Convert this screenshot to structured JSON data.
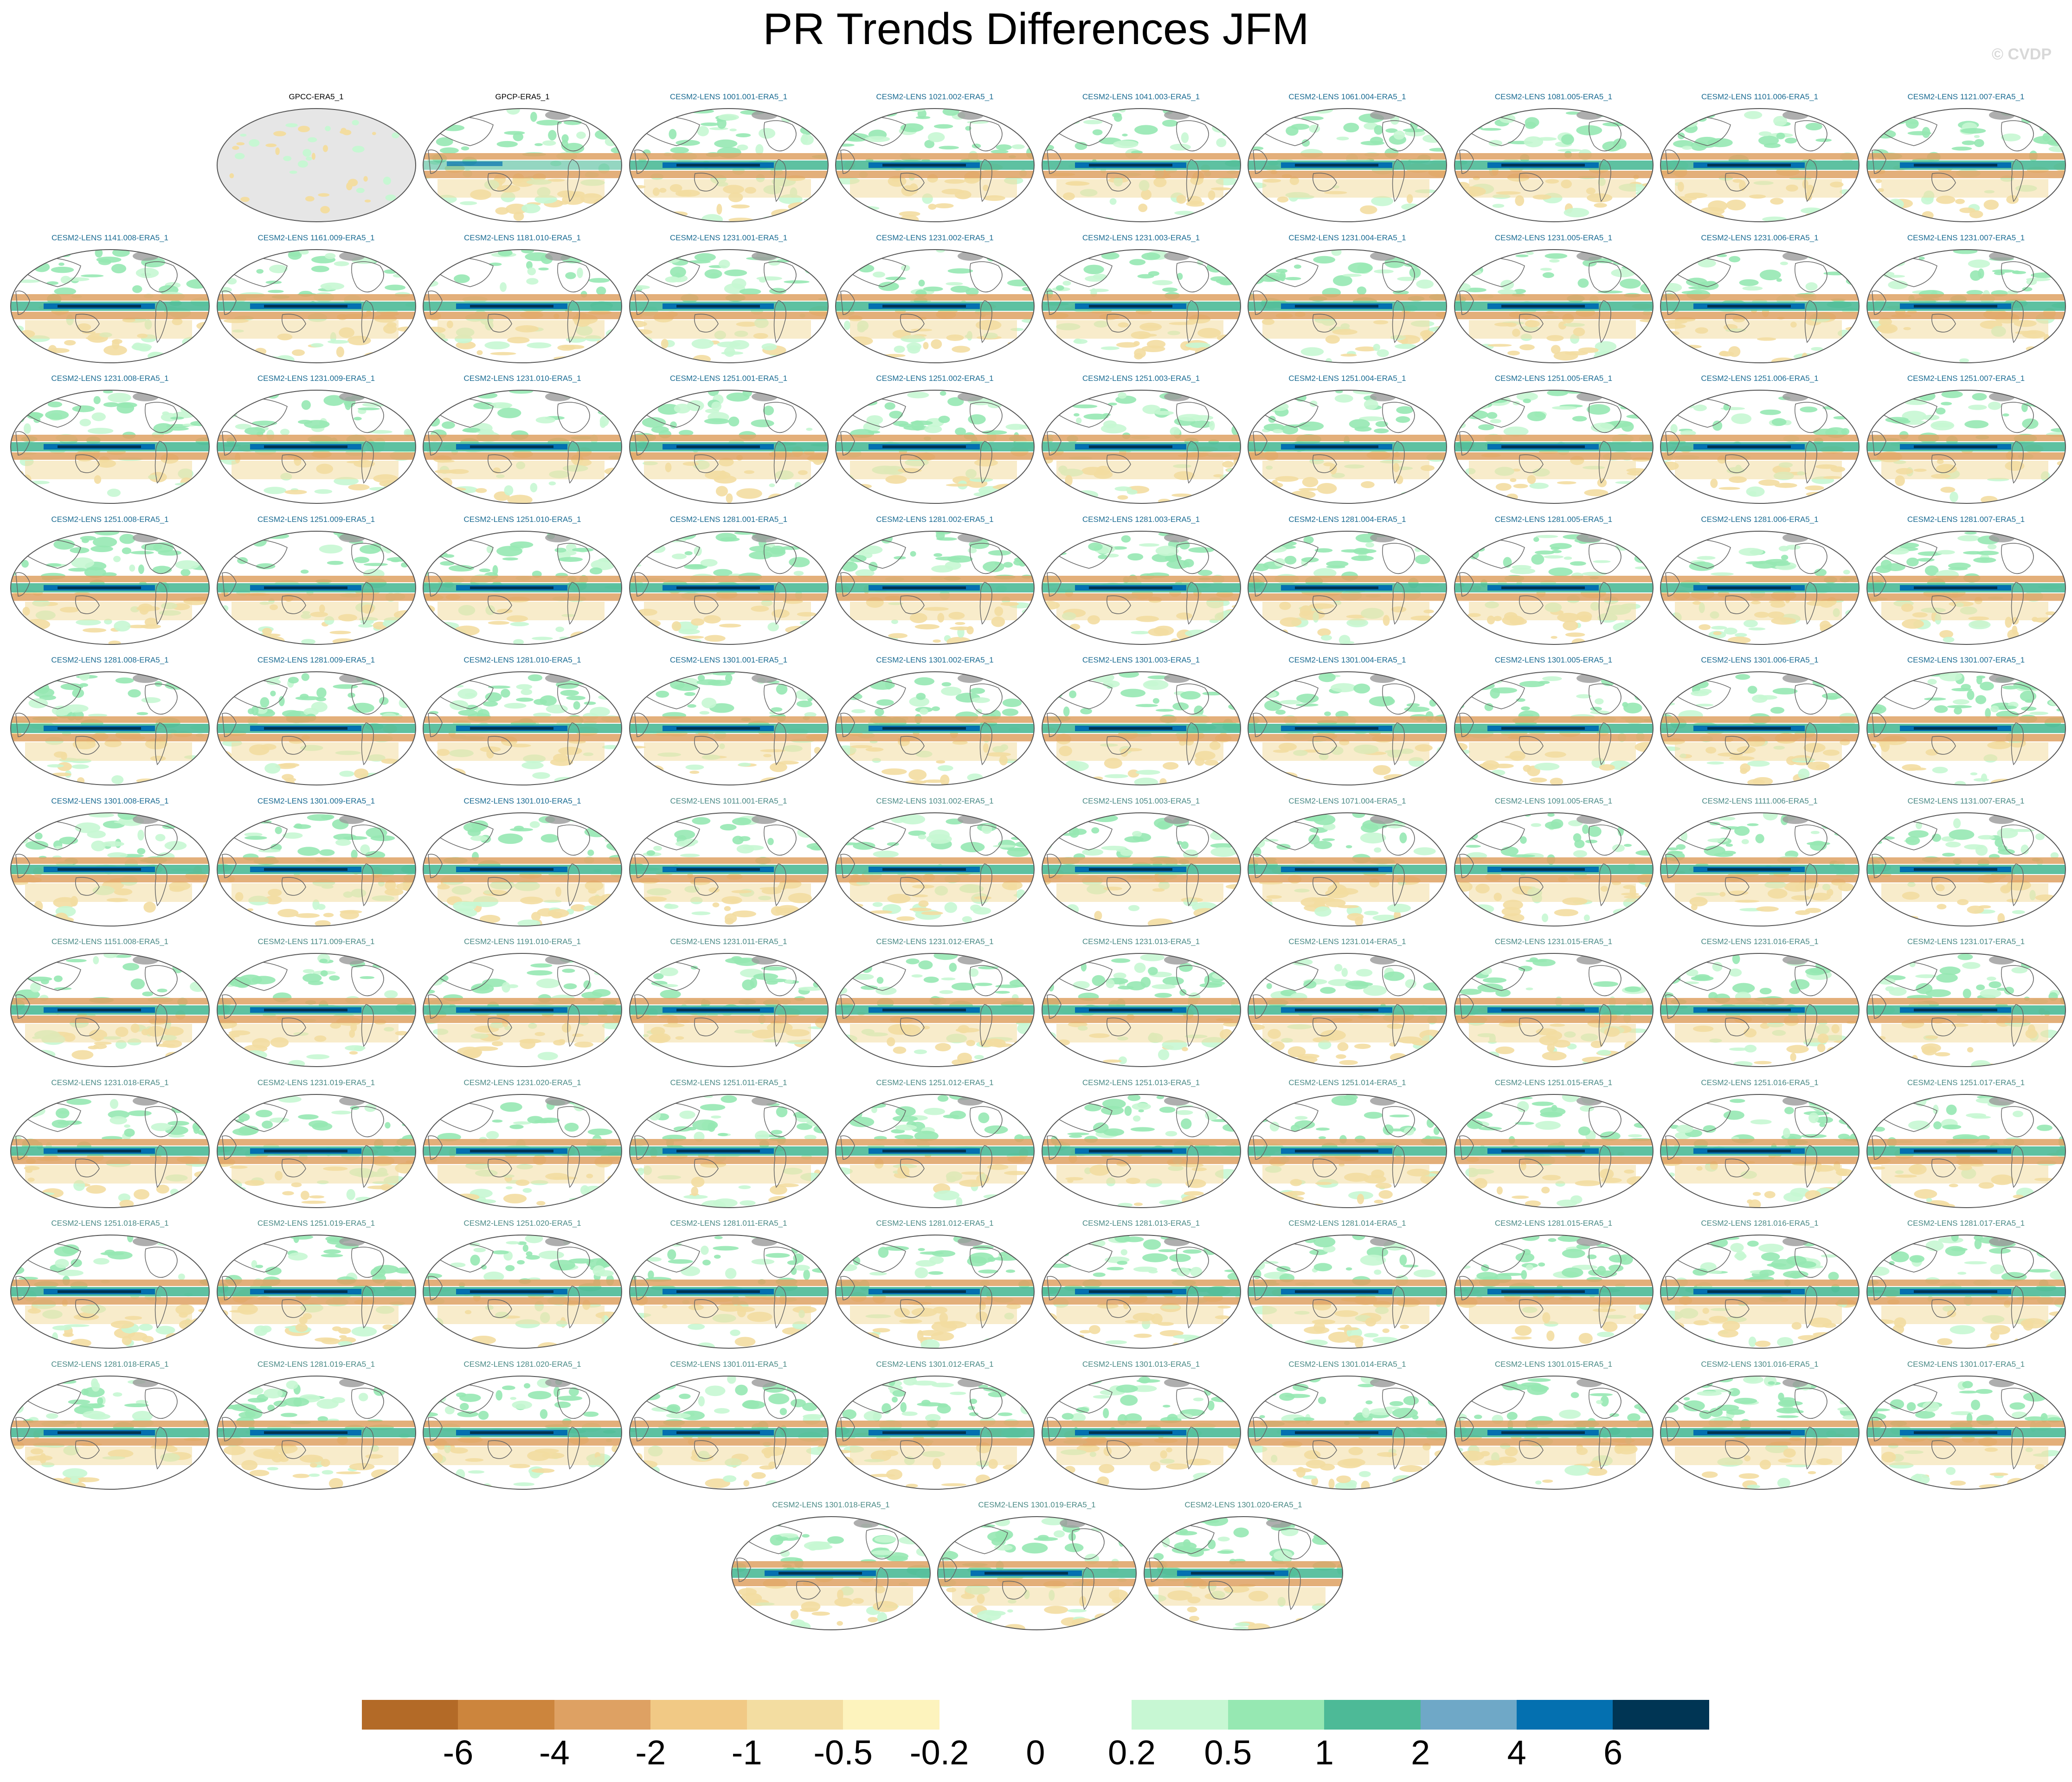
{
  "title": "PR Trends Differences JFM",
  "watermark": "© CVDP",
  "chart_data": {
    "type": "heatmap",
    "title": "PR Trends Differences JFM",
    "projection": "Robinson-like global maps, Pacific-centered",
    "panel_labels": [
      "GPCC-ERA5_1",
      "GPCP-ERA5_1",
      "CESM2-LENS 1001.001-ERA5_1",
      "CESM2-LENS 1021.002-ERA5_1",
      "CESM2-LENS 1041.003-ERA5_1",
      "CESM2-LENS 1061.004-ERA5_1",
      "CESM2-LENS 1081.005-ERA5_1",
      "CESM2-LENS 1101.006-ERA5_1",
      "CESM2-LENS 1121.007-ERA5_1",
      "CESM2-LENS 1141.008-ERA5_1",
      "CESM2-LENS 1161.009-ERA5_1",
      "CESM2-LENS 1181.010-ERA5_1",
      "CESM2-LENS 1231.001-ERA5_1",
      "CESM2-LENS 1231.002-ERA5_1",
      "CESM2-LENS 1231.003-ERA5_1",
      "CESM2-LENS 1231.004-ERA5_1",
      "CESM2-LENS 1231.005-ERA5_1",
      "CESM2-LENS 1231.006-ERA5_1",
      "CESM2-LENS 1231.007-ERA5_1",
      "CESM2-LENS 1231.008-ERA5_1",
      "CESM2-LENS 1231.009-ERA5_1",
      "CESM2-LENS 1231.010-ERA5_1",
      "CESM2-LENS 1251.001-ERA5_1",
      "CESM2-LENS 1251.002-ERA5_1",
      "CESM2-LENS 1251.003-ERA5_1",
      "CESM2-LENS 1251.004-ERA5_1",
      "CESM2-LENS 1251.005-ERA5_1",
      "CESM2-LENS 1251.006-ERA5_1",
      "CESM2-LENS 1251.007-ERA5_1",
      "CESM2-LENS 1251.008-ERA5_1",
      "CESM2-LENS 1251.009-ERA5_1",
      "CESM2-LENS 1251.010-ERA5_1",
      "CESM2-LENS 1281.001-ERA5_1",
      "CESM2-LENS 1281.002-ERA5_1",
      "CESM2-LENS 1281.003-ERA5_1",
      "CESM2-LENS 1281.004-ERA5_1",
      "CESM2-LENS 1281.005-ERA5_1",
      "CESM2-LENS 1281.006-ERA5_1",
      "CESM2-LENS 1281.007-ERA5_1",
      "CESM2-LENS 1281.008-ERA5_1",
      "CESM2-LENS 1281.009-ERA5_1",
      "CESM2-LENS 1281.010-ERA5_1",
      "CESM2-LENS 1301.001-ERA5_1",
      "CESM2-LENS 1301.002-ERA5_1",
      "CESM2-LENS 1301.003-ERA5_1",
      "CESM2-LENS 1301.004-ERA5_1",
      "CESM2-LENS 1301.005-ERA5_1",
      "CESM2-LENS 1301.006-ERA5_1",
      "CESM2-LENS 1301.007-ERA5_1",
      "CESM2-LENS 1301.008-ERA5_1",
      "CESM2-LENS 1301.009-ERA5_1",
      "CESM2-LENS 1301.010-ERA5_1",
      "CESM2-LENS 1011.001-ERA5_1",
      "CESM2-LENS 1031.002-ERA5_1",
      "CESM2-LENS 1051.003-ERA5_1",
      "CESM2-LENS 1071.004-ERA5_1",
      "CESM2-LENS 1091.005-ERA5_1",
      "CESM2-LENS 1111.006-ERA5_1",
      "CESM2-LENS 1131.007-ERA5_1",
      "CESM2-LENS 1151.008-ERA5_1",
      "CESM2-LENS 1171.009-ERA5_1",
      "CESM2-LENS 1191.010-ERA5_1",
      "CESM2-LENS 1231.011-ERA5_1",
      "CESM2-LENS 1231.012-ERA5_1",
      "CESM2-LENS 1231.013-ERA5_1",
      "CESM2-LENS 1231.014-ERA5_1",
      "CESM2-LENS 1231.015-ERA5_1",
      "CESM2-LENS 1231.016-ERA5_1",
      "CESM2-LENS 1231.017-ERA5_1",
      "CESM2-LENS 1231.018-ERA5_1",
      "CESM2-LENS 1231.019-ERA5_1",
      "CESM2-LENS 1231.020-ERA5_1",
      "CESM2-LENS 1251.011-ERA5_1",
      "CESM2-LENS 1251.012-ERA5_1",
      "CESM2-LENS 1251.013-ERA5_1",
      "CESM2-LENS 1251.014-ERA5_1",
      "CESM2-LENS 1251.015-ERA5_1",
      "CESM2-LENS 1251.016-ERA5_1",
      "CESM2-LENS 1251.017-ERA5_1",
      "CESM2-LENS 1251.018-ERA5_1",
      "CESM2-LENS 1251.019-ERA5_1",
      "CESM2-LENS 1251.020-ERA5_1",
      "CESM2-LENS 1281.011-ERA5_1",
      "CESM2-LENS 1281.012-ERA5_1",
      "CESM2-LENS 1281.013-ERA5_1",
      "CESM2-LENS 1281.014-ERA5_1",
      "CESM2-LENS 1281.015-ERA5_1",
      "CESM2-LENS 1281.016-ERA5_1",
      "CESM2-LENS 1281.017-ERA5_1",
      "CESM2-LENS 1281.018-ERA5_1",
      "CESM2-LENS 1281.019-ERA5_1",
      "CESM2-LENS 1281.020-ERA5_1",
      "CESM2-LENS 1301.011-ERA5_1",
      "CESM2-LENS 1301.012-ERA5_1",
      "CESM2-LENS 1301.013-ERA5_1",
      "CESM2-LENS 1301.014-ERA5_1",
      "CESM2-LENS 1301.015-ERA5_1",
      "CESM2-LENS 1301.016-ERA5_1",
      "CESM2-LENS 1301.017-ERA5_1",
      "CESM2-LENS 1301.018-ERA5_1",
      "CESM2-LENS 1301.019-ERA5_1",
      "CESM2-LENS 1301.020-ERA5_1"
    ],
    "colorbar": {
      "levels": [
        "-6",
        "-4",
        "-2",
        "-1",
        "-0.5",
        "-0.2",
        "0",
        "0.2",
        "0.5",
        "1",
        "2",
        "4",
        "6"
      ],
      "colors": [
        "#b36a27",
        "#cc853d",
        "#dea163",
        "#f1c985",
        "#f3dda1",
        "#fdf3bd",
        "#ffffff",
        "#ffffff",
        "#c7f7d3",
        "#96e8b2",
        "#4dba97",
        "#6fa8c7",
        "#0470b0",
        "#003554"
      ]
    },
    "palette": {
      "wet_band": "#0470b0",
      "wet_band_core": "#003554",
      "dry_flank": "#dea163",
      "green": "#96e8b2",
      "light_green": "#c7f7d3",
      "light_yellow": "#f3dda1",
      "teal": "#4dba97",
      "land_missing": "#e6e6e6",
      "outline": "#666666"
    }
  }
}
